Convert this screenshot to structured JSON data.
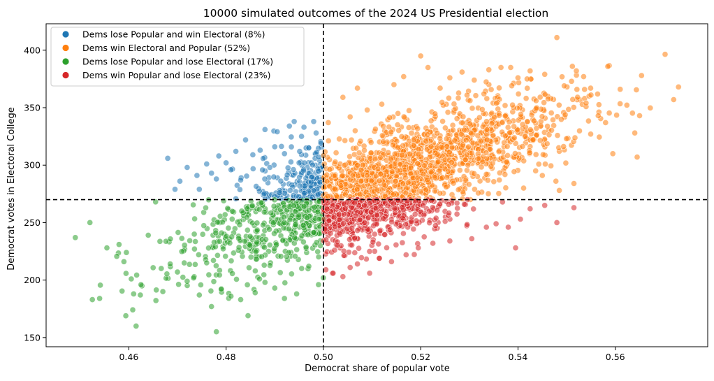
{
  "chart_data": {
    "type": "scatter",
    "title": "10000 simulated outcomes of the 2024 US Presidential election",
    "xlabel": "Democrat share of popular vote",
    "ylabel": "Democrat votes in Electoral College",
    "xlim": [
      0.443,
      0.579
    ],
    "ylim": [
      142,
      423
    ],
    "xticks": [
      0.46,
      0.48,
      0.5,
      0.52,
      0.54,
      0.56
    ],
    "xtick_labels": [
      "0.46",
      "0.48",
      "0.50",
      "0.52",
      "0.54",
      "0.56"
    ],
    "yticks": [
      150,
      200,
      250,
      300,
      350,
      400
    ],
    "ytick_labels": [
      "150",
      "200",
      "250",
      "300",
      "350",
      "400"
    ],
    "grid": false,
    "legend_position": "top-left",
    "reference_lines": {
      "x": 0.5,
      "y": 270,
      "style": "dashed"
    },
    "simulations": 10000,
    "series": [
      {
        "name": "Dems lose Popular and win Electoral (8%)",
        "color": "#1f77b4",
        "share": 0.08,
        "x_range": [
          0.467,
          0.5
        ],
        "y_range": [
          270,
          340
        ],
        "points": [
          [
            0.468,
            306
          ],
          [
            0.4695,
            279
          ],
          [
            0.4705,
            286
          ],
          [
            0.472,
            298
          ],
          [
            0.474,
            291
          ],
          [
            0.4745,
            279
          ],
          [
            0.476,
            301
          ],
          [
            0.477,
            293
          ],
          [
            0.478,
            288
          ],
          [
            0.4785,
            308
          ],
          [
            0.48,
            302
          ],
          [
            0.481,
            296
          ],
          [
            0.482,
            312
          ],
          [
            0.483,
            287
          ],
          [
            0.484,
            322
          ],
          [
            0.4855,
            309
          ],
          [
            0.487,
            313
          ],
          [
            0.488,
            331
          ],
          [
            0.489,
            298
          ],
          [
            0.49,
            316
          ],
          [
            0.4905,
            329
          ],
          [
            0.491,
            276
          ],
          [
            0.492,
            310
          ],
          [
            0.493,
            334
          ],
          [
            0.494,
            338
          ],
          [
            0.495,
            302
          ],
          [
            0.4955,
            325
          ],
          [
            0.496,
            333
          ],
          [
            0.497,
            315
          ],
          [
            0.498,
            338
          ],
          [
            0.4985,
            328
          ],
          [
            0.499,
            307
          ],
          [
            0.4995,
            319
          ]
        ]
      },
      {
        "name": "Dems win Electoral and Popular (52%)",
        "color": "#ff7f0e",
        "share": 0.52,
        "x_range": [
          0.5,
          0.573
        ],
        "y_range": [
          270,
          411
        ],
        "points": [
          [
            0.501,
            337
          ],
          [
            0.504,
            359
          ],
          [
            0.507,
            367
          ],
          [
            0.5055,
            342
          ],
          [
            0.509,
            348
          ],
          [
            0.512,
            353
          ],
          [
            0.5145,
            370
          ],
          [
            0.5165,
            377
          ],
          [
            0.52,
            395
          ],
          [
            0.5215,
            385
          ],
          [
            0.524,
            367
          ],
          [
            0.526,
            376
          ],
          [
            0.5285,
            381
          ],
          [
            0.531,
            374
          ],
          [
            0.533,
            362
          ],
          [
            0.534,
            383
          ],
          [
            0.5365,
            385
          ],
          [
            0.5385,
            385
          ],
          [
            0.54,
            376
          ],
          [
            0.5425,
            382
          ],
          [
            0.5455,
            379
          ],
          [
            0.548,
            411
          ],
          [
            0.5495,
            369
          ],
          [
            0.552,
            382
          ],
          [
            0.5535,
            377
          ],
          [
            0.554,
            354
          ],
          [
            0.555,
            361
          ],
          [
            0.5565,
            343
          ],
          [
            0.558,
            337
          ],
          [
            0.5595,
            310
          ],
          [
            0.561,
            366
          ],
          [
            0.564,
            328
          ],
          [
            0.5645,
            307
          ],
          [
            0.565,
            343
          ],
          [
            0.572,
            357
          ],
          [
            0.573,
            368
          ],
          [
            0.5515,
            284
          ],
          [
            0.5485,
            278
          ],
          [
            0.545,
            291
          ]
        ]
      },
      {
        "name": "Dems lose Popular and lose Electoral (17%)",
        "color": "#2ca02c",
        "share": 0.17,
        "x_range": [
          0.449,
          0.5
        ],
        "y_range": [
          155,
          270
        ],
        "points": [
          [
            0.449,
            237
          ],
          [
            0.452,
            250
          ],
          [
            0.4525,
            183
          ],
          [
            0.454,
            184
          ],
          [
            0.4555,
            228
          ],
          [
            0.458,
            231
          ],
          [
            0.459,
            216
          ],
          [
            0.4595,
            224
          ],
          [
            0.4605,
            201
          ],
          [
            0.461,
            188
          ],
          [
            0.4615,
            160
          ],
          [
            0.4625,
            196
          ],
          [
            0.464,
            239
          ],
          [
            0.4655,
            268
          ],
          [
            0.467,
            190
          ],
          [
            0.4685,
            214
          ],
          [
            0.47,
            207
          ],
          [
            0.472,
            199
          ],
          [
            0.4745,
            187
          ],
          [
            0.476,
            215
          ],
          [
            0.477,
            177
          ],
          [
            0.478,
            155
          ],
          [
            0.479,
            192
          ],
          [
            0.481,
            186
          ],
          [
            0.483,
            183
          ],
          [
            0.4845,
            169
          ],
          [
            0.486,
            208
          ],
          [
            0.488,
            198
          ],
          [
            0.49,
            193
          ],
          [
            0.492,
            184
          ],
          [
            0.4945,
            188
          ],
          [
            0.497,
            212
          ],
          [
            0.499,
            196
          ],
          [
            0.5,
            202
          ]
        ]
      },
      {
        "name": "Dems win Popular and lose Electoral (23%)",
        "color": "#d62728",
        "share": 0.23,
        "x_range": [
          0.5,
          0.552
        ],
        "y_range": [
          196,
          270
        ],
        "points": [
          [
            0.5005,
            209
          ],
          [
            0.502,
            206
          ],
          [
            0.504,
            203
          ],
          [
            0.5055,
            211
          ],
          [
            0.507,
            214
          ],
          [
            0.5095,
            206
          ],
          [
            0.5115,
            219
          ],
          [
            0.514,
            216
          ],
          [
            0.517,
            222
          ],
          [
            0.5195,
            228
          ],
          [
            0.5225,
            232
          ],
          [
            0.526,
            234
          ],
          [
            0.5305,
            236
          ],
          [
            0.5335,
            246
          ],
          [
            0.5355,
            249
          ],
          [
            0.538,
            246
          ],
          [
            0.5395,
            228
          ],
          [
            0.5405,
            253
          ],
          [
            0.5425,
            262
          ],
          [
            0.5455,
            265
          ],
          [
            0.548,
            250
          ],
          [
            0.5515,
            263
          ]
        ]
      }
    ]
  }
}
